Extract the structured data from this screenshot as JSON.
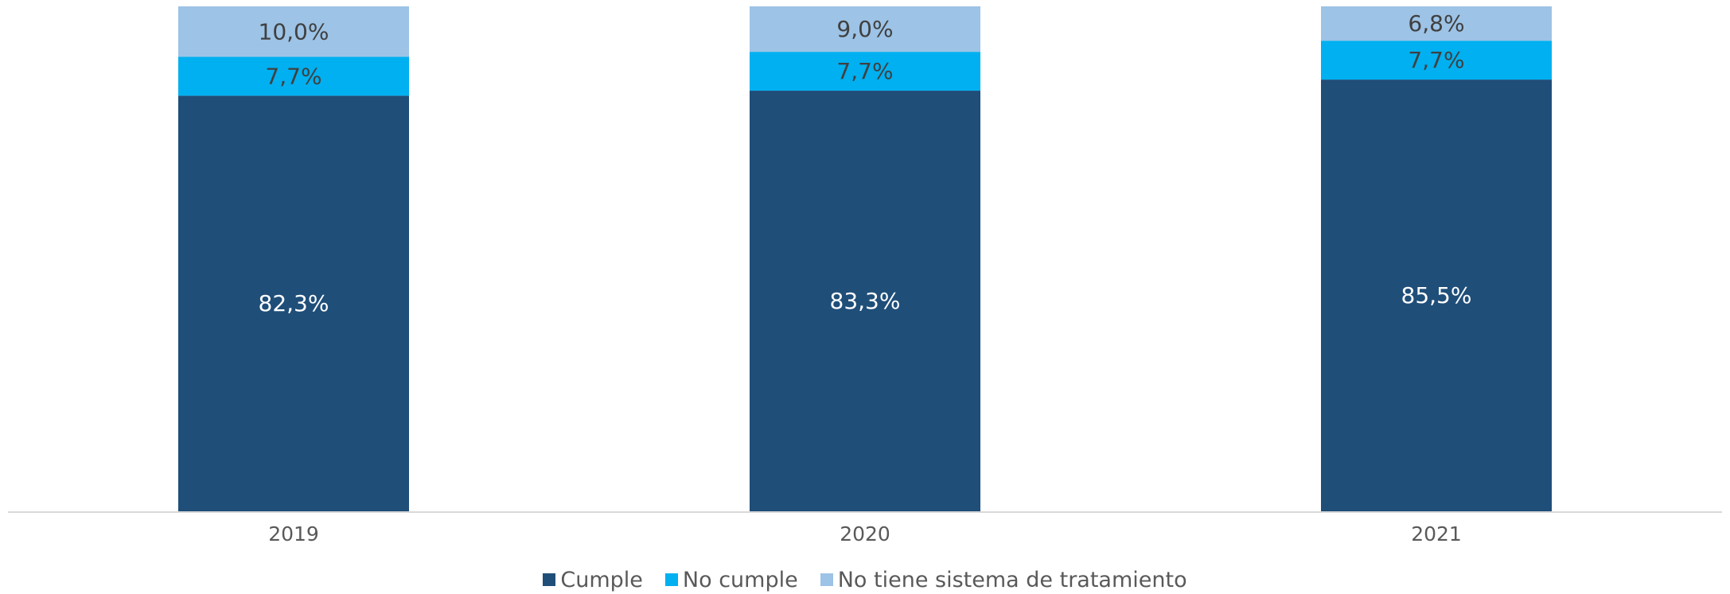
{
  "chart_data": {
    "type": "bar",
    "stacked": true,
    "title": "",
    "xlabel": "",
    "ylabel": "",
    "ylim": [
      0,
      100
    ],
    "grid": false,
    "legend_position": "bottom",
    "categories": [
      "2019",
      "2020",
      "2021"
    ],
    "series": [
      {
        "name": "Cumple",
        "values": [
          82.3,
          83.3,
          85.5
        ],
        "labels": [
          "82,3%",
          "83,3%",
          "85,5%"
        ],
        "color": "#1f4e79",
        "label_color": "#ffffff"
      },
      {
        "name": "No cumple",
        "values": [
          7.7,
          7.7,
          7.7
        ],
        "labels": [
          "7,7%",
          "7,7%",
          "7,7%"
        ],
        "color": "#00b0f0",
        "label_color": "#404040"
      },
      {
        "name": "No tiene sistema de tratamiento",
        "values": [
          10.0,
          9.0,
          6.8
        ],
        "labels": [
          "10,0%",
          "9,0%",
          "6,8%"
        ],
        "color": "#9dc3e6",
        "label_color": "#404040"
      }
    ]
  }
}
